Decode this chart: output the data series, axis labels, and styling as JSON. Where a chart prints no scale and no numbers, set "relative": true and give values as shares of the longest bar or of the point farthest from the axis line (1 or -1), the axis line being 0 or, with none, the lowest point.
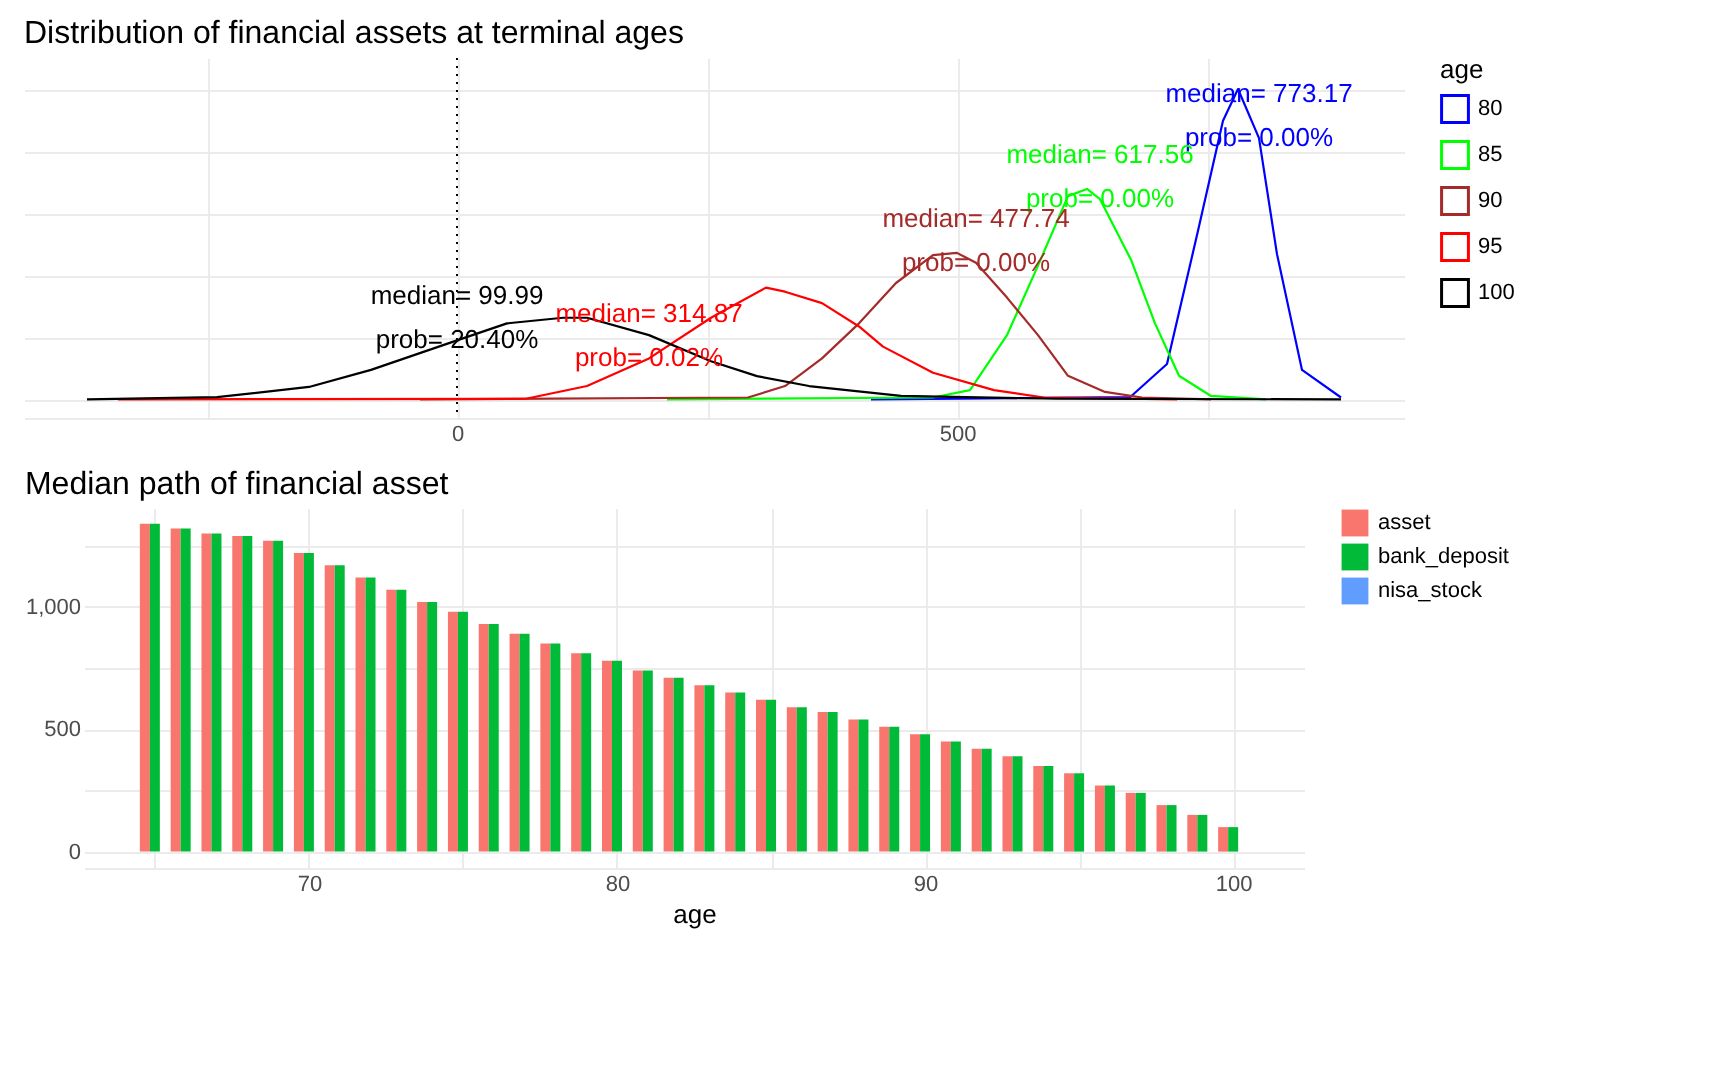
{
  "chart_data": [
    {
      "type": "line",
      "title": "Distribution of financial assets at terminal ages",
      "relative": true,
      "legend_title": "age",
      "legend": "right",
      "grid": true,
      "marker": "none",
      "xlim": [
        -433,
        947
      ],
      "xticks": [
        {
          "value": -250,
          "label": null
        },
        0,
        {
          "value": 250,
          "label": null
        },
        500,
        {
          "value": 750,
          "label": null
        }
      ],
      "series": [
        {
          "name": "80",
          "color": "#0000ff",
          "x": [
            414,
            673,
            710,
            741,
            766,
            781,
            802,
            820,
            845,
            884
          ],
          "values": [
            0,
            0.007,
            0.114,
            0.543,
            0.898,
            1,
            0.842,
            0.468,
            0.095,
            0.006
          ]
        },
        {
          "name": "85",
          "color": "#00ff00",
          "x": [
            210,
            476,
            513,
            550,
            581,
            611,
            630,
            643,
            674,
            698,
            722,
            754,
            809
          ],
          "values": [
            0,
            0.006,
            0.03,
            0.207,
            0.431,
            0.655,
            0.678,
            0.645,
            0.45,
            0.245,
            0.076,
            0.011,
            0
          ]
        },
        {
          "name": "90",
          "color": "#a52a2a",
          "x": [
            -37,
            291,
            328,
            365,
            402,
            439,
            476,
            500,
            519,
            550,
            581,
            611,
            648,
            685,
            754
          ],
          "values": [
            0,
            0.006,
            0.043,
            0.132,
            0.245,
            0.375,
            0.465,
            0.472,
            0.44,
            0.328,
            0.207,
            0.076,
            0.024,
            0.006,
            0
          ]
        },
        {
          "name": "95",
          "color": "#ff0000",
          "x": [
            -339,
            69,
            130,
            192,
            254,
            309,
            328,
            365,
            402,
            426,
            476,
            537,
            587,
            720
          ],
          "values": [
            0,
            0.002,
            0.043,
            0.132,
            0.263,
            0.36,
            0.347,
            0.31,
            0.235,
            0.17,
            0.086,
            0.03,
            0.006,
            0
          ]
        },
        {
          "name": "100",
          "color": "#000000",
          "x": [
            -370,
            -240,
            -148,
            -86,
            0,
            50,
            106,
            130,
            192,
            254,
            300,
            352,
            444,
            600,
            884
          ],
          "values": [
            0,
            0.007,
            0.04,
            0.095,
            0.19,
            0.245,
            0.263,
            0.263,
            0.207,
            0.123,
            0.075,
            0.043,
            0.011,
            0.002,
            0
          ]
        }
      ],
      "ref_lines": [
        {
          "axis": "x",
          "value": 0,
          "color": "#000000",
          "line_style": "dotted"
        }
      ],
      "annotations": [
        {
          "text": "median= 773.17",
          "x": 802,
          "y": 0.842
        },
        {
          "text": "prob= 0.00%",
          "x": 802,
          "y": 0.842
        },
        {
          "text": "median= 617.56",
          "x": 643,
          "y": 0.645
        },
        {
          "text": "prob= 0.00%",
          "x": 643,
          "y": 0.645
        },
        {
          "text": "median= 477.74",
          "x": 519,
          "y": 0.44
        },
        {
          "text": "prob= 0.00%",
          "x": 519,
          "y": 0.44
        },
        {
          "text": "median= 314.87",
          "x": 192,
          "y": 0.132
        },
        {
          "text": "prob= 0.02%",
          "x": 192,
          "y": 0.132
        },
        {
          "text": "median= 99.99",
          "x": 0,
          "y": 0.19
        },
        {
          "text": "prob= 20.40%",
          "x": 0,
          "y": 0.19
        }
      ]
    },
    {
      "type": "bar",
      "title": "Median path of financial asset",
      "xlabel": "age",
      "legend": "right",
      "grid": true,
      "x": [
        65,
        66,
        67,
        68,
        69,
        70,
        71,
        72,
        73,
        74,
        75,
        76,
        77,
        78,
        79,
        80,
        81,
        82,
        83,
        84,
        85,
        86,
        87,
        88,
        89,
        90,
        91,
        92,
        93,
        94,
        95,
        96,
        97,
        98,
        99,
        100
      ],
      "xlim": [
        62.7,
        102.3
      ],
      "xticks": [
        {
          "value": 65,
          "label": null
        },
        70,
        {
          "value": 75,
          "label": null
        },
        80,
        {
          "value": 85,
          "label": null
        },
        90,
        {
          "value": 95,
          "label": null
        },
        100
      ],
      "ylim": [
        -67,
        1404
      ],
      "yticks": [
        0,
        {
          "value": 250,
          "label": null
        },
        500,
        {
          "value": 750,
          "label": null
        },
        {
          "value": 1000,
          "label": "1,000"
        },
        {
          "value": 1250,
          "label": null
        }
      ],
      "series": [
        {
          "name": "asset",
          "color": "#f8766d",
          "values": [
            1340,
            1320,
            1300,
            1290,
            1270,
            1220,
            1170,
            1120,
            1070,
            1020,
            980,
            930,
            890,
            850,
            810,
            780,
            740,
            710,
            680,
            650,
            620,
            590,
            570,
            540,
            510,
            480,
            450,
            420,
            390,
            350,
            320,
            270,
            240,
            190,
            150,
            100
          ]
        },
        {
          "name": "bank_deposit",
          "color": "#00ba38",
          "values": [
            1340,
            1320,
            1300,
            1290,
            1270,
            1220,
            1170,
            1120,
            1070,
            1020,
            980,
            930,
            890,
            850,
            810,
            780,
            740,
            710,
            680,
            650,
            620,
            590,
            570,
            540,
            510,
            480,
            450,
            420,
            390,
            350,
            320,
            270,
            240,
            190,
            150,
            100
          ]
        },
        {
          "name": "nisa_stock",
          "color": "#619cff",
          "values": [
            0,
            0,
            0,
            0,
            0,
            0,
            0,
            0,
            0,
            0,
            0,
            0,
            0,
            0,
            0,
            0,
            0,
            0,
            0,
            0,
            0,
            0,
            0,
            0,
            0,
            0,
            0,
            0,
            0,
            0,
            0,
            0,
            0,
            0,
            0,
            0
          ]
        }
      ]
    }
  ]
}
